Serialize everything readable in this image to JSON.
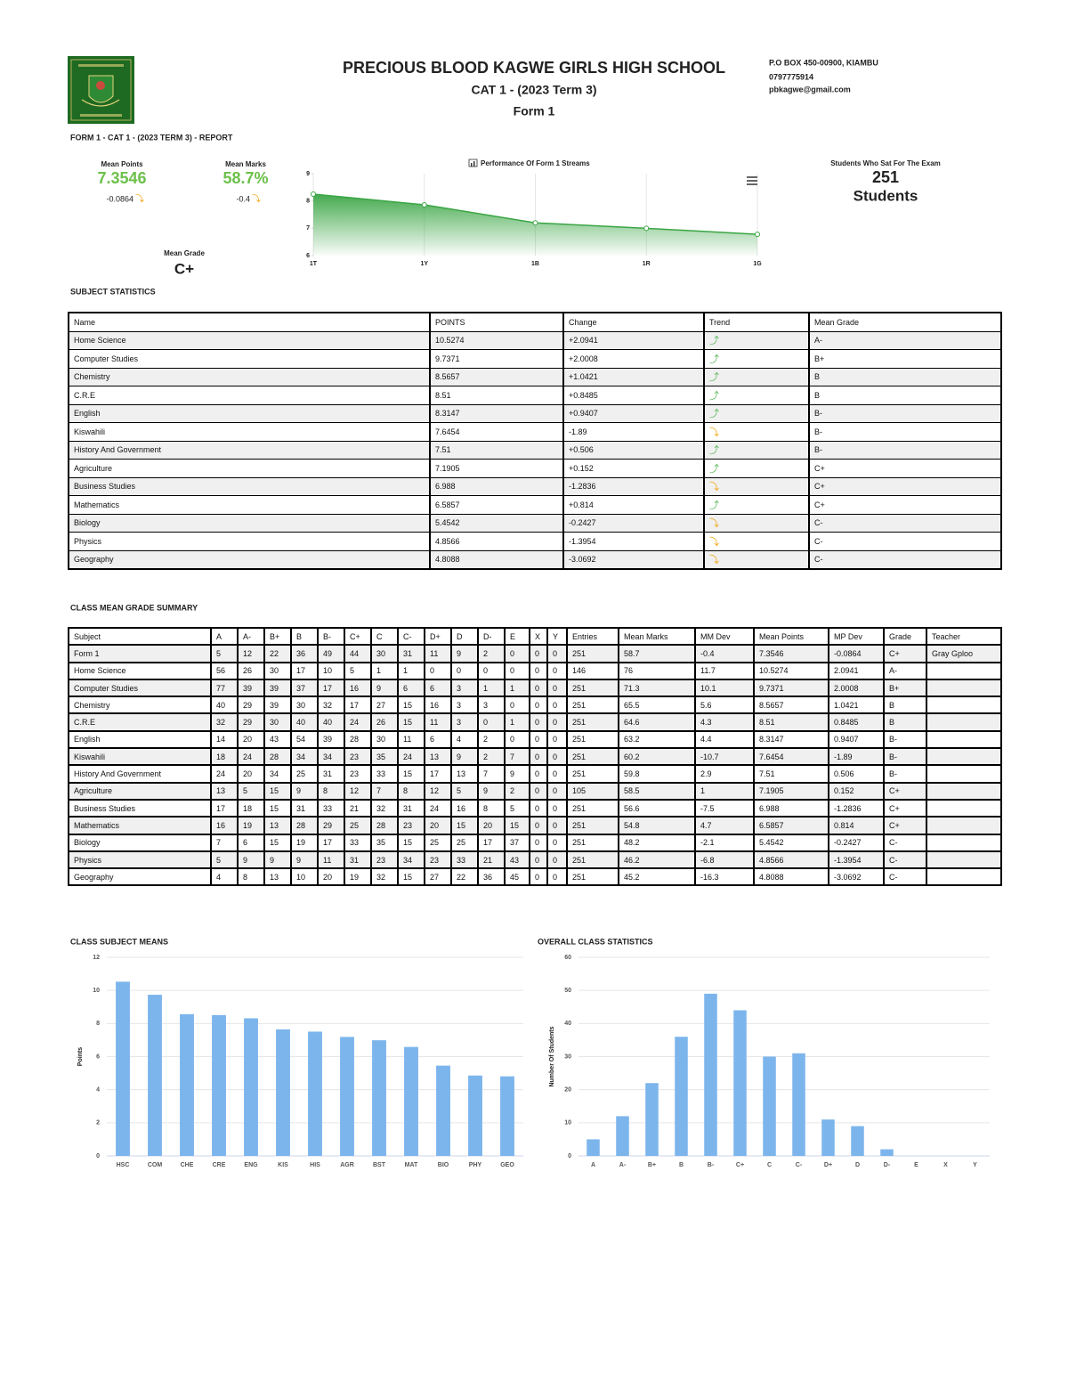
{
  "header": {
    "title": "PRECIOUS BLOOD KAGWE GIRLS HIGH SCHOOL",
    "subtitle": "CAT 1 - (2023 Term 3)",
    "form": "Form 1",
    "contact": [
      "P.O BOX 450-00900, KIAMBU",
      "0797775914",
      "pbkagwe@gmail.com"
    ],
    "report_label": "FORM 1 - CAT 1 - (2023 TERM 3) - REPORT"
  },
  "summary": {
    "mean_points": {
      "label": "Mean Points",
      "value": "7.3546",
      "change": "-0.0864",
      "trend": "⤵"
    },
    "mean_marks": {
      "label": "Mean Marks",
      "value": "58.7%",
      "change": "-0.4",
      "trend": "⤵"
    },
    "mean_grade": {
      "label": "Mean Grade",
      "value": "C+"
    },
    "students": {
      "label": "Students Who Sat For The Exam",
      "value": "251",
      "unit": "Students"
    }
  },
  "performance_chart": {
    "type": "area",
    "title": "Performance Of Form 1 Streams",
    "categories": [
      "1T",
      "1Y",
      "1B",
      "1R",
      "1G"
    ],
    "values": [
      8.25,
      7.86,
      7.2,
      7.0,
      6.78
    ],
    "color": "#3aa544",
    "ylim": [
      6,
      9
    ],
    "yticks": [
      6,
      7,
      8,
      9
    ],
    "grid": true
  },
  "subject_statistics": {
    "title": "SUBJECT STATISTICS",
    "columns": [
      "Name",
      "POINTS",
      "Change",
      "Trend",
      "Mean Grade"
    ],
    "rows": [
      [
        "Home Science",
        "10.5274",
        "+2.0941",
        "⤴",
        "A-"
      ],
      [
        "Computer Studies",
        "9.7371",
        "+2.0008",
        "⤴",
        "B+"
      ],
      [
        "Chemistry",
        "8.5657",
        "+1.0421",
        "⤴",
        "B"
      ],
      [
        "C.R.E",
        "8.51",
        "+0.8485",
        "⤴",
        "B"
      ],
      [
        "English",
        "8.3147",
        "+0.9407",
        "⤴",
        "B-"
      ],
      [
        "Kiswahili",
        "7.6454",
        "-1.89",
        "⤵",
        "B-"
      ],
      [
        "History And Government",
        "7.51",
        "+0.506",
        "⤴",
        "B-"
      ],
      [
        "Agriculture",
        "7.1905",
        "+0.152",
        "⤴",
        "C+"
      ],
      [
        "Business Studies",
        "6.988",
        "-1.2836",
        "⤵",
        "C+"
      ],
      [
        "Mathematics",
        "6.5857",
        "+0.814",
        "⤴",
        "C+"
      ],
      [
        "Biology",
        "5.4542",
        "-0.2427",
        "⤵",
        "C-"
      ],
      [
        "Physics",
        "4.8566",
        "-1.3954",
        "⤵",
        "C-"
      ],
      [
        "Geography",
        "4.8088",
        "-3.0692",
        "⤵",
        "C-"
      ]
    ]
  },
  "class_mean_grade_summary": {
    "title": "CLASS MEAN GRADE SUMMARY",
    "columns": [
      "Subject",
      "A",
      "A-",
      "B+",
      "B",
      "B-",
      "C+",
      "C",
      "C-",
      "D+",
      "D",
      "D-",
      "E",
      "X",
      "Y",
      "Entries",
      "Mean Marks",
      "MM Dev",
      "Mean Points",
      "MP Dev",
      "Grade",
      "Teacher"
    ],
    "rows": [
      [
        "Form 1",
        "5",
        "12",
        "22",
        "36",
        "49",
        "44",
        "30",
        "31",
        "11",
        "9",
        "2",
        "0",
        "0",
        "0",
        "251",
        "58.7",
        "-0.4",
        "7.3546",
        "-0.0864",
        "C+",
        "Gray Gploo"
      ],
      [
        "Home Science",
        "56",
        "26",
        "30",
        "17",
        "10",
        "5",
        "1",
        "1",
        "0",
        "0",
        "0",
        "0",
        "0",
        "0",
        "146",
        "76",
        "11.7",
        "10.5274",
        "2.0941",
        "A-",
        null
      ],
      [
        "Computer Studies",
        "77",
        "39",
        "39",
        "37",
        "17",
        "16",
        "9",
        "6",
        "6",
        "3",
        "1",
        "1",
        "0",
        "0",
        "251",
        "71.3",
        "10.1",
        "9.7371",
        "2.0008",
        "B+",
        null
      ],
      [
        "Chemistry",
        "40",
        "29",
        "39",
        "30",
        "32",
        "17",
        "27",
        "15",
        "16",
        "3",
        "3",
        "0",
        "0",
        "0",
        "251",
        "65.5",
        "5.6",
        "8.5657",
        "1.0421",
        "B",
        null
      ],
      [
        "C.R.E",
        "32",
        "29",
        "30",
        "40",
        "40",
        "24",
        "26",
        "15",
        "11",
        "3",
        "0",
        "1",
        "0",
        "0",
        "251",
        "64.6",
        "4.3",
        "8.51",
        "0.8485",
        "B",
        null
      ],
      [
        "English",
        "14",
        "20",
        "43",
        "54",
        "39",
        "28",
        "30",
        "11",
        "6",
        "4",
        "2",
        "0",
        "0",
        "0",
        "251",
        "63.2",
        "4.4",
        "8.3147",
        "0.9407",
        "B-",
        null
      ],
      [
        "Kiswahili",
        "18",
        "24",
        "28",
        "34",
        "34",
        "23",
        "35",
        "24",
        "13",
        "9",
        "2",
        "7",
        "0",
        "0",
        "251",
        "60.2",
        "-10.7",
        "7.6454",
        "-1.89",
        "B-",
        null
      ],
      [
        "History And Government",
        "24",
        "20",
        "34",
        "25",
        "31",
        "23",
        "33",
        "15",
        "17",
        "13",
        "7",
        "9",
        "0",
        "0",
        "251",
        "59.8",
        "2.9",
        "7.51",
        "0.506",
        "B-",
        null
      ],
      [
        "Agriculture",
        "13",
        "5",
        "15",
        "9",
        "8",
        "12",
        "7",
        "8",
        "12",
        "5",
        "9",
        "2",
        "0",
        "0",
        "105",
        "58.5",
        "1",
        "7.1905",
        "0.152",
        "C+",
        null
      ],
      [
        "Business Studies",
        "17",
        "18",
        "15",
        "31",
        "33",
        "21",
        "32",
        "31",
        "24",
        "16",
        "8",
        "5",
        "0",
        "0",
        "251",
        "56.6",
        "-7.5",
        "6.988",
        "-1.2836",
        "C+",
        null
      ],
      [
        "Mathematics",
        "16",
        "19",
        "13",
        "28",
        "29",
        "25",
        "28",
        "23",
        "20",
        "15",
        "20",
        "15",
        "0",
        "0",
        "251",
        "54.8",
        "4.7",
        "6.5857",
        "0.814",
        "C+",
        null
      ],
      [
        "Biology",
        "7",
        "6",
        "15",
        "19",
        "17",
        "33",
        "35",
        "15",
        "25",
        "25",
        "17",
        "37",
        "0",
        "0",
        "251",
        "48.2",
        "-2.1",
        "5.4542",
        "-0.2427",
        "C-",
        null
      ],
      [
        "Physics",
        "5",
        "9",
        "9",
        "9",
        "11",
        "31",
        "23",
        "34",
        "23",
        "33",
        "21",
        "43",
        "0",
        "0",
        "251",
        "46.2",
        "-6.8",
        "4.8566",
        "-1.3954",
        "C-",
        null
      ],
      [
        "Geography",
        "4",
        "8",
        "13",
        "10",
        "20",
        "19",
        "32",
        "15",
        "27",
        "22",
        "36",
        "45",
        "0",
        "0",
        "251",
        "45.2",
        "-16.3",
        "4.8088",
        "-3.0692",
        "C-",
        null
      ]
    ]
  },
  "subject_means_chart": {
    "type": "bar",
    "title": "CLASS SUBJECT MEANS",
    "y_label": "Points",
    "categories": [
      "HSC",
      "COM",
      "CHE",
      "CRE",
      "ENG",
      "KIS",
      "HIS",
      "AGR",
      "BST",
      "MAT",
      "BIO",
      "PHY",
      "GEO"
    ],
    "values": [
      10.5274,
      9.7371,
      8.5657,
      8.51,
      8.3147,
      7.6454,
      7.51,
      7.1905,
      6.988,
      6.5857,
      5.4542,
      4.8566,
      4.8088
    ],
    "color": "#7cb5ec",
    "ylim": [
      0,
      12
    ],
    "yticks": [
      0,
      2,
      4,
      6,
      8,
      10,
      12
    ],
    "grid": true
  },
  "class_statistics_chart": {
    "type": "bar",
    "title": "OVERALL CLASS STATISTICS",
    "y_label": "Number Of Students",
    "categories": [
      "A",
      "A-",
      "B+",
      "B",
      "B-",
      "C+",
      "C",
      "C-",
      "D+",
      "D",
      "D-",
      "E",
      "X",
      "Y"
    ],
    "values": [
      5,
      12,
      22,
      36,
      49,
      44,
      30,
      31,
      11,
      9,
      2,
      0,
      0,
      0
    ],
    "color": "#7cb5ec",
    "ylim": [
      0,
      60
    ],
    "yticks": [
      0,
      10,
      20,
      30,
      40,
      50,
      60
    ],
    "grid": true
  }
}
